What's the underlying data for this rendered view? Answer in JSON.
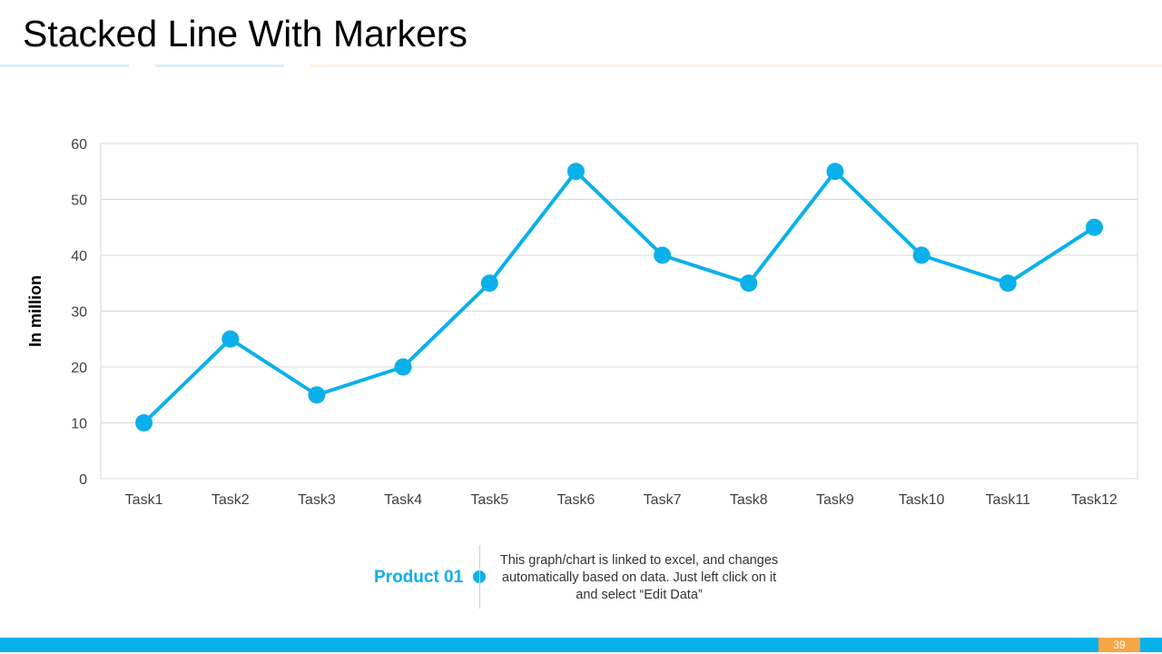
{
  "slide": {
    "title": "Stacked Line With Markers",
    "page_number": "39"
  },
  "colors": {
    "accent": "#0ab0ea",
    "page_badge": "#f7a646",
    "title_line_blue": "#d6eef9",
    "title_line_orange": "#fdf0e1"
  },
  "legend": {
    "series_name": "Product 01",
    "note": "This graph/chart is linked to excel, and changes automatically based on data. Just left click on it and select “Edit Data”"
  },
  "chart_data": {
    "type": "line",
    "title": "",
    "xlabel": "",
    "ylabel": "In million",
    "ylim": [
      0,
      60
    ],
    "yticks": [
      0,
      10,
      20,
      30,
      40,
      50,
      60
    ],
    "grid": true,
    "markers": true,
    "categories": [
      "Task1",
      "Task2",
      "Task3",
      "Task4",
      "Task5",
      "Task6",
      "Task7",
      "Task8",
      "Task9",
      "Task10",
      "Task11",
      "Task12"
    ],
    "series": [
      {
        "name": "Product 01",
        "values": [
          10,
          25,
          15,
          20,
          35,
          55,
          40,
          35,
          55,
          40,
          35,
          45
        ]
      }
    ]
  }
}
